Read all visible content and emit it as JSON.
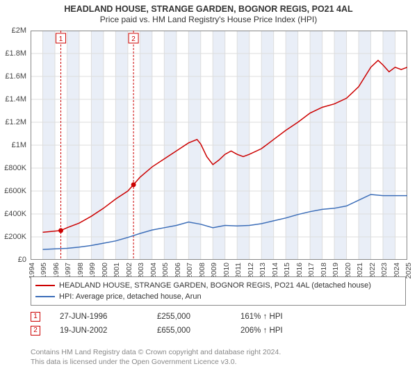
{
  "title_line1": "HEADLAND HOUSE, STRANGE GARDEN, BOGNOR REGIS, PO21 4AL",
  "title_line2": "Price paid vs. HM Land Registry's House Price Index (HPI)",
  "title_fontsize": 12.5,
  "subtitle_fontsize": 12,
  "chart": {
    "type": "line",
    "background_color": "#ffffff",
    "plot_border_color": "#888888",
    "grid_color": "#dddddd",
    "shaded_xaxis_band_color": "#e9eef7",
    "shaded_bands_x": [
      [
        1995,
        1996
      ],
      [
        1997,
        1998
      ],
      [
        1999,
        2000
      ],
      [
        2001,
        2002
      ],
      [
        2003,
        2004
      ],
      [
        2005,
        2006
      ],
      [
        2007,
        2008
      ],
      [
        2009,
        2010
      ],
      [
        2011,
        2012
      ],
      [
        2013,
        2014
      ],
      [
        2015,
        2016
      ],
      [
        2017,
        2018
      ],
      [
        2019,
        2020
      ],
      [
        2021,
        2022
      ],
      [
        2023,
        2024
      ]
    ],
    "ylim": [
      0,
      2000000
    ],
    "ytick_step": 200000,
    "ytick_labels": [
      "£0",
      "£200K",
      "£400K",
      "£600K",
      "£800K",
      "£1M",
      "£1.2M",
      "£1.4M",
      "£1.6M",
      "£1.8M",
      "£2M"
    ],
    "xlim": [
      1994,
      2025
    ],
    "xtick_step": 1,
    "xtick_labels": [
      "1994",
      "1995",
      "1996",
      "1997",
      "1998",
      "1999",
      "2000",
      "2001",
      "2002",
      "2003",
      "2004",
      "2005",
      "2006",
      "2007",
      "2008",
      "2009",
      "2010",
      "2011",
      "2012",
      "2013",
      "2014",
      "2015",
      "2016",
      "2017",
      "2018",
      "2019",
      "2020",
      "2021",
      "2022",
      "2023",
      "2024",
      "2025"
    ],
    "axis_label_fontsize": 11,
    "series": [
      {
        "name": "HEADLAND HOUSE, STRANGE GARDEN, BOGNOR REGIS, PO21 4AL (detached house)",
        "color": "#cc0000",
        "line_width": 1.5,
        "data": [
          [
            1995.0,
            240000
          ],
          [
            1996.49,
            255000
          ],
          [
            1997.0,
            280000
          ],
          [
            1998.0,
            320000
          ],
          [
            1999.0,
            380000
          ],
          [
            2000.0,
            450000
          ],
          [
            2001.0,
            530000
          ],
          [
            2002.0,
            600000
          ],
          [
            2002.47,
            655000
          ],
          [
            2003.0,
            720000
          ],
          [
            2004.0,
            810000
          ],
          [
            2005.0,
            880000
          ],
          [
            2006.0,
            950000
          ],
          [
            2007.0,
            1020000
          ],
          [
            2007.7,
            1050000
          ],
          [
            2008.0,
            1010000
          ],
          [
            2008.5,
            900000
          ],
          [
            2009.0,
            830000
          ],
          [
            2009.5,
            870000
          ],
          [
            2010.0,
            920000
          ],
          [
            2010.5,
            950000
          ],
          [
            2011.0,
            920000
          ],
          [
            2011.5,
            900000
          ],
          [
            2012.0,
            920000
          ],
          [
            2013.0,
            970000
          ],
          [
            2014.0,
            1050000
          ],
          [
            2015.0,
            1130000
          ],
          [
            2016.0,
            1200000
          ],
          [
            2017.0,
            1280000
          ],
          [
            2018.0,
            1330000
          ],
          [
            2019.0,
            1360000
          ],
          [
            2020.0,
            1410000
          ],
          [
            2021.0,
            1510000
          ],
          [
            2022.0,
            1680000
          ],
          [
            2022.6,
            1740000
          ],
          [
            2023.0,
            1700000
          ],
          [
            2023.5,
            1640000
          ],
          [
            2024.0,
            1680000
          ],
          [
            2024.5,
            1660000
          ],
          [
            2025.0,
            1680000
          ]
        ]
      },
      {
        "name": "HPI: Average price, detached house, Arun",
        "color": "#3b6db8",
        "line_width": 1.5,
        "data": [
          [
            1995.0,
            90000
          ],
          [
            1996.0,
            95000
          ],
          [
            1997.0,
            100000
          ],
          [
            1998.0,
            110000
          ],
          [
            1999.0,
            125000
          ],
          [
            2000.0,
            145000
          ],
          [
            2001.0,
            165000
          ],
          [
            2002.0,
            195000
          ],
          [
            2003.0,
            230000
          ],
          [
            2004.0,
            260000
          ],
          [
            2005.0,
            280000
          ],
          [
            2006.0,
            300000
          ],
          [
            2007.0,
            330000
          ],
          [
            2008.0,
            310000
          ],
          [
            2009.0,
            280000
          ],
          [
            2010.0,
            300000
          ],
          [
            2011.0,
            295000
          ],
          [
            2012.0,
            300000
          ],
          [
            2013.0,
            315000
          ],
          [
            2014.0,
            340000
          ],
          [
            2015.0,
            365000
          ],
          [
            2016.0,
            395000
          ],
          [
            2017.0,
            420000
          ],
          [
            2018.0,
            440000
          ],
          [
            2019.0,
            450000
          ],
          [
            2020.0,
            470000
          ],
          [
            2021.0,
            520000
          ],
          [
            2022.0,
            570000
          ],
          [
            2023.0,
            560000
          ],
          [
            2024.0,
            560000
          ],
          [
            2025.0,
            560000
          ]
        ]
      }
    ],
    "markers": [
      {
        "label": "1",
        "x": 1996.49,
        "y": 255000,
        "color": "#cc0000",
        "guide_dash": "3,2"
      },
      {
        "label": "2",
        "x": 2002.47,
        "y": 655000,
        "color": "#cc0000",
        "guide_dash": "3,2"
      }
    ]
  },
  "legend": {
    "border_color": "#888888",
    "fontsize": 11,
    "items": [
      {
        "label": "HEADLAND HOUSE, STRANGE GARDEN, BOGNOR REGIS, PO21 4AL (detached house)",
        "color": "#cc0000"
      },
      {
        "label": "HPI: Average price, detached house, Arun",
        "color": "#3b6db8"
      }
    ]
  },
  "sales": [
    {
      "num": "1",
      "date": "27-JUN-1996",
      "price": "£255,000",
      "hpi_delta": "161% ↑ HPI",
      "box_color": "#cc0000"
    },
    {
      "num": "2",
      "date": "19-JUN-2002",
      "price": "£655,000",
      "hpi_delta": "206% ↑ HPI",
      "box_color": "#cc0000"
    }
  ],
  "footer_line1": "Contains HM Land Registry data © Crown copyright and database right 2024.",
  "footer_line2": "This data is licensed under the Open Government Licence v3.0."
}
